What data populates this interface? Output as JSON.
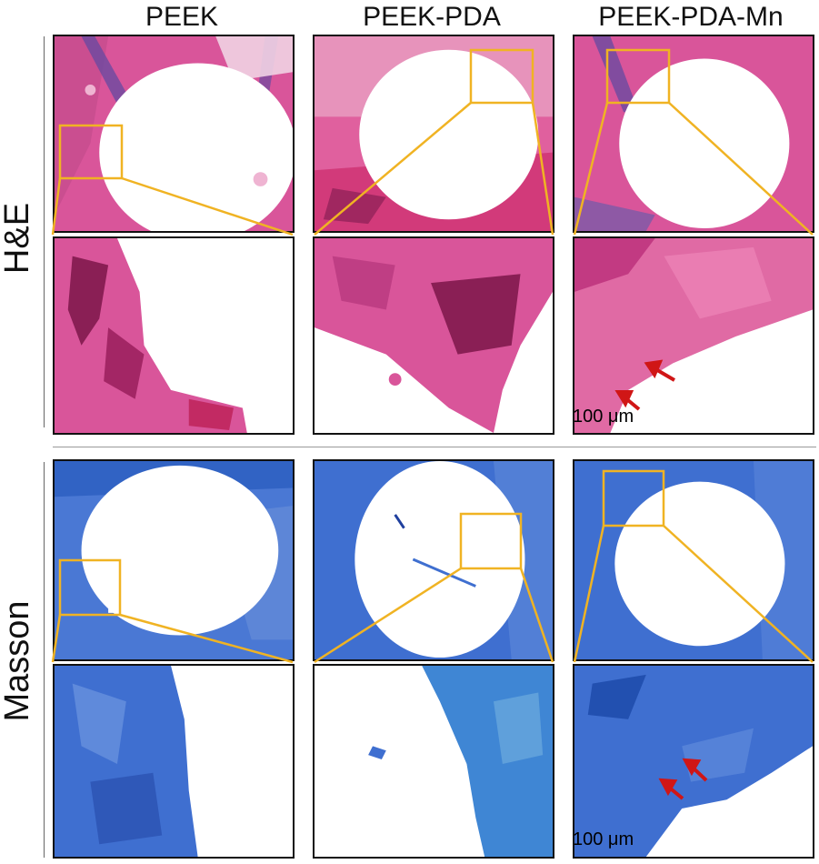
{
  "columns": [
    "PEEK",
    "PEEK-PDA",
    "PEEK-PDA-Mn"
  ],
  "rows": [
    "H&E",
    "Masson"
  ],
  "scale_bar": "100 μm",
  "colors": {
    "he_stain": "#d9559a",
    "he_dark": "#8a1f55",
    "masson_stain": "#3f6fd0",
    "masson_dark": "#1f3f9e",
    "zoom_box": "#f0b323",
    "arrow": "#d01616"
  }
}
